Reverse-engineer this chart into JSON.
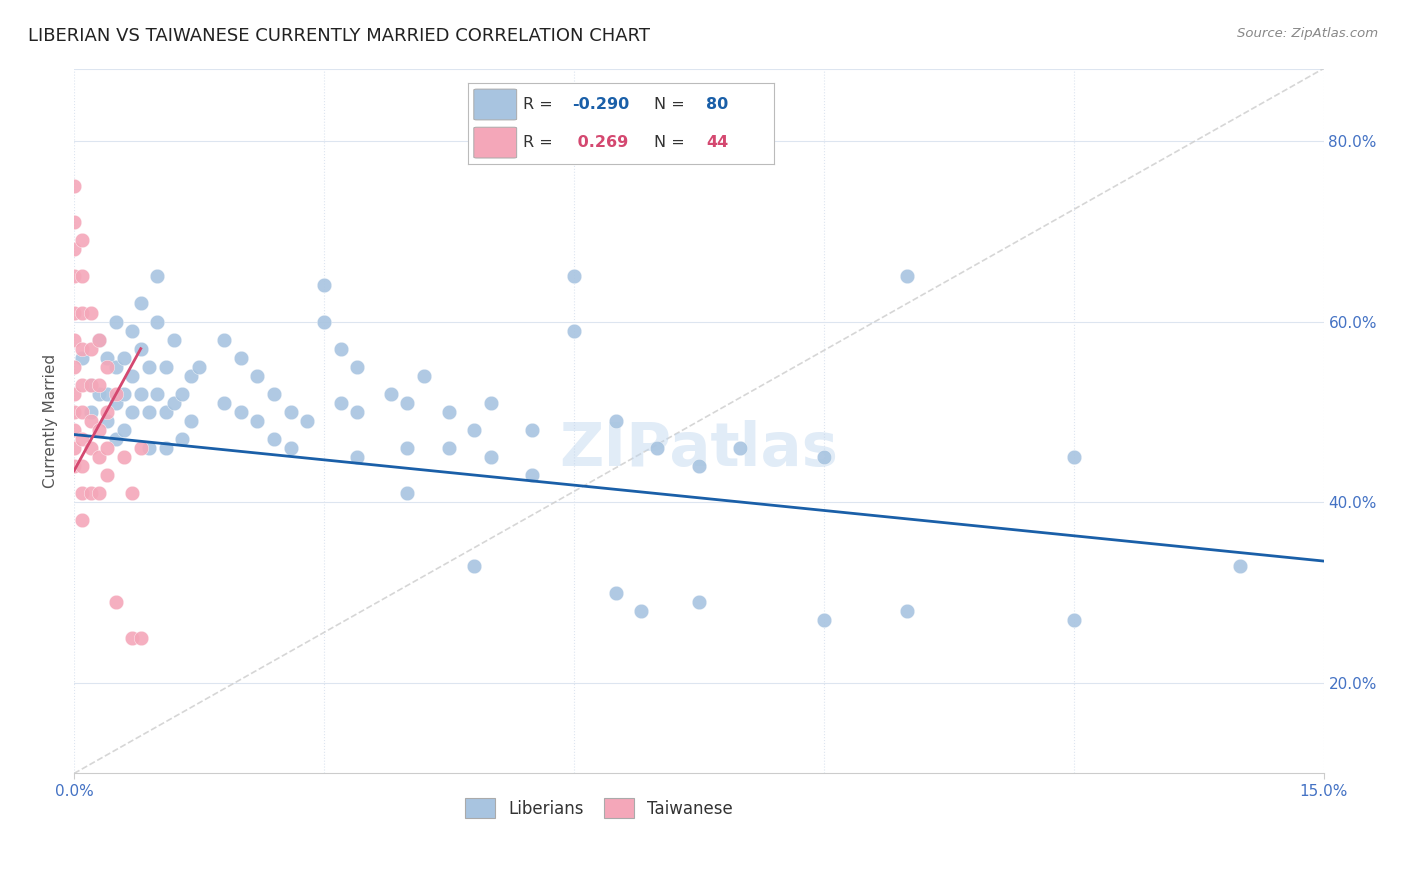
{
  "title": "LIBERIAN VS TAIWANESE CURRENTLY MARRIED CORRELATION CHART",
  "source": "Source: ZipAtlas.com",
  "ylabel": "Currently Married",
  "xlim": [
    0.0,
    0.15
  ],
  "ylim": [
    0.1,
    0.88
  ],
  "ytick_labels": [
    "20.0%",
    "40.0%",
    "60.0%",
    "80.0%"
  ],
  "ytick_positions": [
    0.2,
    0.4,
    0.6,
    0.8
  ],
  "blue_color": "#a8c4e0",
  "pink_color": "#f4a7b9",
  "blue_line_color": "#1a5fa8",
  "pink_line_color": "#d44870",
  "diagonal_color": "#cccccc",
  "watermark": "ZIPatlas",
  "legend_blue_label": "Liberians",
  "legend_pink_label": "Taiwanese",
  "axis_label_color": "#4472c4",
  "grid_color": "#dde5f0",
  "blue_line": [
    [
      0.0,
      0.475
    ],
    [
      0.15,
      0.335
    ]
  ],
  "pink_line": [
    [
      0.0,
      0.435
    ],
    [
      0.008,
      0.57
    ]
  ],
  "blue_scatter": [
    [
      0.001,
      0.56
    ],
    [
      0.002,
      0.53
    ],
    [
      0.002,
      0.5
    ],
    [
      0.003,
      0.58
    ],
    [
      0.003,
      0.52
    ],
    [
      0.004,
      0.56
    ],
    [
      0.004,
      0.52
    ],
    [
      0.004,
      0.49
    ],
    [
      0.005,
      0.6
    ],
    [
      0.005,
      0.55
    ],
    [
      0.005,
      0.51
    ],
    [
      0.005,
      0.47
    ],
    [
      0.006,
      0.56
    ],
    [
      0.006,
      0.52
    ],
    [
      0.006,
      0.48
    ],
    [
      0.007,
      0.59
    ],
    [
      0.007,
      0.54
    ],
    [
      0.007,
      0.5
    ],
    [
      0.008,
      0.62
    ],
    [
      0.008,
      0.57
    ],
    [
      0.008,
      0.52
    ],
    [
      0.009,
      0.55
    ],
    [
      0.009,
      0.5
    ],
    [
      0.009,
      0.46
    ],
    [
      0.01,
      0.65
    ],
    [
      0.01,
      0.6
    ],
    [
      0.01,
      0.52
    ],
    [
      0.011,
      0.55
    ],
    [
      0.011,
      0.5
    ],
    [
      0.011,
      0.46
    ],
    [
      0.012,
      0.58
    ],
    [
      0.012,
      0.51
    ],
    [
      0.013,
      0.52
    ],
    [
      0.013,
      0.47
    ],
    [
      0.014,
      0.54
    ],
    [
      0.014,
      0.49
    ],
    [
      0.015,
      0.55
    ],
    [
      0.018,
      0.58
    ],
    [
      0.018,
      0.51
    ],
    [
      0.02,
      0.56
    ],
    [
      0.02,
      0.5
    ],
    [
      0.022,
      0.54
    ],
    [
      0.022,
      0.49
    ],
    [
      0.024,
      0.52
    ],
    [
      0.024,
      0.47
    ],
    [
      0.026,
      0.5
    ],
    [
      0.026,
      0.46
    ],
    [
      0.028,
      0.49
    ],
    [
      0.03,
      0.64
    ],
    [
      0.03,
      0.6
    ],
    [
      0.032,
      0.57
    ],
    [
      0.032,
      0.51
    ],
    [
      0.034,
      0.55
    ],
    [
      0.034,
      0.5
    ],
    [
      0.034,
      0.45
    ],
    [
      0.038,
      0.52
    ],
    [
      0.04,
      0.51
    ],
    [
      0.04,
      0.46
    ],
    [
      0.04,
      0.41
    ],
    [
      0.042,
      0.54
    ],
    [
      0.045,
      0.5
    ],
    [
      0.045,
      0.46
    ],
    [
      0.048,
      0.48
    ],
    [
      0.048,
      0.33
    ],
    [
      0.05,
      0.51
    ],
    [
      0.05,
      0.45
    ],
    [
      0.055,
      0.48
    ],
    [
      0.055,
      0.43
    ],
    [
      0.06,
      0.65
    ],
    [
      0.06,
      0.59
    ],
    [
      0.065,
      0.49
    ],
    [
      0.065,
      0.3
    ],
    [
      0.068,
      0.28
    ],
    [
      0.07,
      0.46
    ],
    [
      0.075,
      0.44
    ],
    [
      0.075,
      0.29
    ],
    [
      0.08,
      0.46
    ],
    [
      0.09,
      0.45
    ],
    [
      0.09,
      0.27
    ],
    [
      0.1,
      0.65
    ],
    [
      0.1,
      0.28
    ],
    [
      0.12,
      0.45
    ],
    [
      0.12,
      0.27
    ],
    [
      0.14,
      0.33
    ]
  ],
  "pink_scatter": [
    [
      0.0,
      0.75
    ],
    [
      0.0,
      0.71
    ],
    [
      0.0,
      0.68
    ],
    [
      0.0,
      0.65
    ],
    [
      0.0,
      0.61
    ],
    [
      0.0,
      0.58
    ],
    [
      0.0,
      0.55
    ],
    [
      0.0,
      0.52
    ],
    [
      0.0,
      0.5
    ],
    [
      0.0,
      0.48
    ],
    [
      0.0,
      0.46
    ],
    [
      0.0,
      0.44
    ],
    [
      0.001,
      0.69
    ],
    [
      0.001,
      0.65
    ],
    [
      0.001,
      0.61
    ],
    [
      0.001,
      0.57
    ],
    [
      0.001,
      0.53
    ],
    [
      0.001,
      0.5
    ],
    [
      0.001,
      0.47
    ],
    [
      0.001,
      0.44
    ],
    [
      0.001,
      0.41
    ],
    [
      0.001,
      0.38
    ],
    [
      0.002,
      0.61
    ],
    [
      0.002,
      0.57
    ],
    [
      0.002,
      0.53
    ],
    [
      0.002,
      0.49
    ],
    [
      0.002,
      0.46
    ],
    [
      0.002,
      0.41
    ],
    [
      0.003,
      0.58
    ],
    [
      0.003,
      0.53
    ],
    [
      0.003,
      0.48
    ],
    [
      0.003,
      0.45
    ],
    [
      0.003,
      0.41
    ],
    [
      0.004,
      0.55
    ],
    [
      0.004,
      0.5
    ],
    [
      0.004,
      0.46
    ],
    [
      0.004,
      0.43
    ],
    [
      0.005,
      0.52
    ],
    [
      0.005,
      0.29
    ],
    [
      0.006,
      0.45
    ],
    [
      0.007,
      0.41
    ],
    [
      0.007,
      0.25
    ],
    [
      0.008,
      0.46
    ],
    [
      0.008,
      0.25
    ]
  ],
  "title_fontsize": 13
}
